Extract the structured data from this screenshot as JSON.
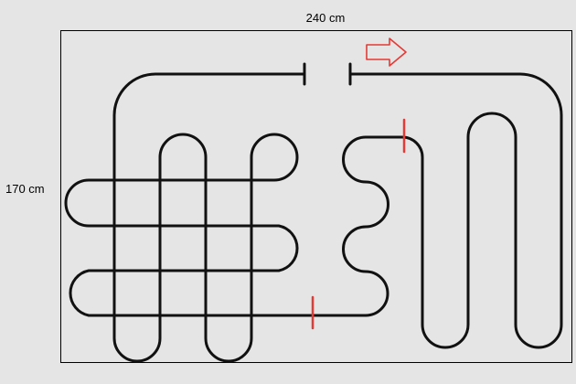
{
  "dimensions": {
    "width_label": "240 cm",
    "height_label": "170 cm"
  },
  "colors": {
    "background": "#e5e5e5",
    "pipe": "#111111",
    "marker": "#e53935"
  },
  "icons": {
    "flow_direction": "right-arrow-icon"
  }
}
